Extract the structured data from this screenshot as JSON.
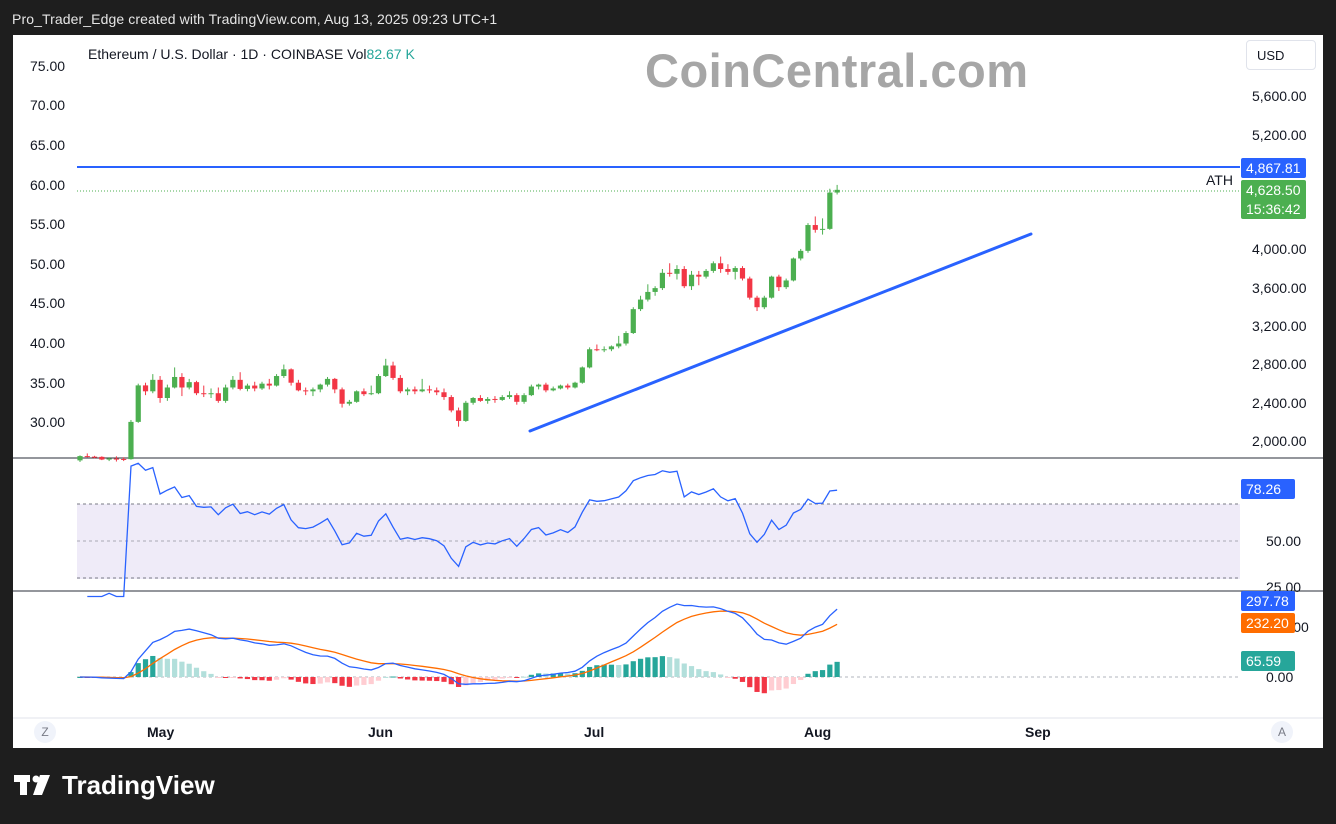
{
  "header": {
    "caption": "Pro_Trader_Edge created with TradingView.com, Aug 13, 2025 09:23 UTC+1"
  },
  "symbol": {
    "name": "Ethereum / U.S. Dollar · 1D · COINBASE",
    "vol_label": "Vol",
    "vol_value": "82.67 K"
  },
  "watermark": "CoinCentral.com",
  "currency": "USD",
  "corner_buttons": {
    "left": "Z",
    "right": "A"
  },
  "left_axis": {
    "ticks": [
      "75.00",
      "70.00",
      "65.00",
      "60.00",
      "55.00",
      "50.00",
      "45.00",
      "40.00",
      "35.00",
      "30.00"
    ]
  },
  "right_axis": {
    "ticks": [
      "5,600.00",
      "5,200.00",
      "4,000.00",
      "3,600.00",
      "3,200.00",
      "2,800.00",
      "2,400.00",
      "2,000.00"
    ]
  },
  "ath": {
    "label": "ATH",
    "price_tag": "4,867.81",
    "color": "#2962ff"
  },
  "last_price": {
    "price": "4,628.50",
    "countdown": "15:36:42",
    "color": "#4caf50"
  },
  "rsi": {
    "value_tag": "78.26",
    "levels": [
      "50.00",
      "25.00"
    ],
    "line_color": "#2962ff",
    "band_color": "#7e57c2"
  },
  "macd": {
    "macd_tag": "297.78",
    "signal_tag": "232.20",
    "hist_tag": "65.59",
    "zero_label": "0.00",
    "hidden_label": "200.00",
    "macd_color": "#2962ff",
    "signal_color": "#ff6d00",
    "hist_color": "#26a69a"
  },
  "time_axis": {
    "labels": [
      "May",
      "Jun",
      "Jul",
      "Aug",
      "Sep"
    ]
  },
  "footer": {
    "brand": "TradingView"
  },
  "colors": {
    "up": "#4caf50",
    "down": "#f23645",
    "trendline": "#2962ff"
  },
  "chart_data": {
    "type": "candlestick",
    "title": "Ethereum / U.S. Dollar · 1D · COINBASE",
    "ylabel": "USD",
    "trendline": {
      "from": [
        "2025-06-22",
        2150
      ],
      "to": [
        "2025-08-22",
        4300
      ]
    },
    "ath_level": 4867.81,
    "candles": [
      [
        "2025-05-01",
        1797,
        1850,
        1780,
        1842
      ],
      [
        "2025-05-02",
        1842,
        1870,
        1830,
        1836
      ],
      [
        "2025-05-03",
        1836,
        1845,
        1820,
        1834
      ],
      [
        "2025-05-04",
        1834,
        1840,
        1800,
        1806
      ],
      [
        "2025-05-05",
        1806,
        1830,
        1790,
        1816
      ],
      [
        "2025-05-06",
        1816,
        1840,
        1785,
        1812
      ],
      [
        "2025-05-07",
        1812,
        1830,
        1790,
        1810
      ],
      [
        "2025-05-08",
        1810,
        2220,
        1805,
        2200
      ],
      [
        "2025-05-09",
        2200,
        2600,
        2190,
        2582
      ],
      [
        "2025-05-10",
        2582,
        2610,
        2480,
        2520
      ],
      [
        "2025-05-11",
        2520,
        2700,
        2500,
        2640
      ],
      [
        "2025-05-12",
        2640,
        2680,
        2400,
        2450
      ],
      [
        "2025-05-13",
        2450,
        2590,
        2420,
        2560
      ],
      [
        "2025-05-14",
        2560,
        2770,
        2550,
        2670
      ],
      [
        "2025-05-15",
        2670,
        2710,
        2470,
        2560
      ],
      [
        "2025-05-16",
        2560,
        2650,
        2540,
        2616
      ],
      [
        "2025-05-17",
        2616,
        2630,
        2480,
        2500
      ],
      [
        "2025-05-18",
        2500,
        2580,
        2460,
        2490
      ],
      [
        "2025-05-19",
        2490,
        2550,
        2450,
        2500
      ],
      [
        "2025-05-20",
        2500,
        2560,
        2400,
        2420
      ],
      [
        "2025-05-21",
        2420,
        2590,
        2400,
        2560
      ],
      [
        "2025-05-22",
        2560,
        2680,
        2540,
        2640
      ],
      [
        "2025-05-23",
        2640,
        2720,
        2530,
        2545
      ],
      [
        "2025-05-24",
        2545,
        2600,
        2520,
        2580
      ],
      [
        "2025-05-25",
        2580,
        2620,
        2520,
        2550
      ],
      [
        "2025-05-26",
        2550,
        2620,
        2535,
        2600
      ],
      [
        "2025-05-27",
        2600,
        2650,
        2540,
        2580
      ],
      [
        "2025-05-28",
        2580,
        2700,
        2570,
        2680
      ],
      [
        "2025-05-29",
        2680,
        2800,
        2660,
        2750
      ],
      [
        "2025-05-30",
        2750,
        2760,
        2580,
        2610
      ],
      [
        "2025-05-31",
        2610,
        2640,
        2520,
        2530
      ],
      [
        "2025-06-01",
        2530,
        2560,
        2480,
        2520
      ],
      [
        "2025-06-02",
        2520,
        2560,
        2470,
        2540
      ],
      [
        "2025-06-03",
        2540,
        2600,
        2510,
        2590
      ],
      [
        "2025-06-04",
        2590,
        2670,
        2570,
        2650
      ],
      [
        "2025-06-05",
        2650,
        2660,
        2500,
        2540
      ],
      [
        "2025-06-06",
        2540,
        2560,
        2350,
        2390
      ],
      [
        "2025-06-07",
        2390,
        2430,
        2370,
        2410
      ],
      [
        "2025-06-08",
        2410,
        2530,
        2400,
        2520
      ],
      [
        "2025-06-09",
        2520,
        2550,
        2470,
        2490
      ],
      [
        "2025-06-10",
        2490,
        2580,
        2480,
        2500
      ],
      [
        "2025-06-11",
        2500,
        2700,
        2490,
        2680
      ],
      [
        "2025-06-12",
        2680,
        2860,
        2670,
        2790
      ],
      [
        "2025-06-13",
        2790,
        2830,
        2640,
        2660
      ],
      [
        "2025-06-14",
        2660,
        2690,
        2500,
        2520
      ],
      [
        "2025-06-15",
        2520,
        2560,
        2480,
        2540
      ],
      [
        "2025-06-16",
        2540,
        2570,
        2490,
        2520
      ],
      [
        "2025-06-17",
        2520,
        2650,
        2510,
        2540
      ],
      [
        "2025-06-18",
        2540,
        2580,
        2500,
        2530
      ],
      [
        "2025-06-19",
        2530,
        2560,
        2480,
        2510
      ],
      [
        "2025-06-20",
        2510,
        2550,
        2430,
        2460
      ],
      [
        "2025-06-21",
        2460,
        2480,
        2300,
        2320
      ],
      [
        "2025-06-22",
        2320,
        2350,
        2150,
        2210
      ],
      [
        "2025-06-23",
        2210,
        2420,
        2200,
        2400
      ],
      [
        "2025-06-24",
        2400,
        2460,
        2380,
        2450
      ],
      [
        "2025-06-25",
        2450,
        2480,
        2410,
        2420
      ],
      [
        "2025-06-26",
        2420,
        2460,
        2390,
        2440
      ],
      [
        "2025-06-27",
        2440,
        2470,
        2400,
        2430
      ],
      [
        "2025-06-28",
        2430,
        2480,
        2420,
        2460
      ],
      [
        "2025-06-29",
        2460,
        2520,
        2440,
        2480
      ],
      [
        "2025-06-30",
        2480,
        2500,
        2380,
        2410
      ],
      [
        "2025-07-01",
        2410,
        2500,
        2390,
        2480
      ],
      [
        "2025-07-02",
        2480,
        2590,
        2470,
        2570
      ],
      [
        "2025-07-03",
        2570,
        2600,
        2540,
        2590
      ],
      [
        "2025-07-04",
        2590,
        2610,
        2510,
        2530
      ],
      [
        "2025-07-05",
        2530,
        2570,
        2520,
        2550
      ],
      [
        "2025-07-06",
        2550,
        2590,
        2540,
        2580
      ],
      [
        "2025-07-07",
        2580,
        2600,
        2540,
        2560
      ],
      [
        "2025-07-08",
        2560,
        2620,
        2550,
        2610
      ],
      [
        "2025-07-09",
        2610,
        2780,
        2600,
        2770
      ],
      [
        "2025-07-10",
        2770,
        2980,
        2760,
        2960
      ],
      [
        "2025-07-11",
        2960,
        3010,
        2940,
        2950
      ],
      [
        "2025-07-12",
        2950,
        2990,
        2930,
        2960
      ],
      [
        "2025-07-13",
        2960,
        3000,
        2940,
        2990
      ],
      [
        "2025-07-14",
        2990,
        3100,
        2970,
        3020
      ],
      [
        "2025-07-15",
        3020,
        3150,
        3000,
        3130
      ],
      [
        "2025-07-16",
        3130,
        3400,
        3120,
        3380
      ],
      [
        "2025-07-17",
        3380,
        3520,
        3360,
        3480
      ],
      [
        "2025-07-18",
        3480,
        3640,
        3460,
        3560
      ],
      [
        "2025-07-19",
        3560,
        3620,
        3520,
        3600
      ],
      [
        "2025-07-20",
        3600,
        3800,
        3580,
        3760
      ],
      [
        "2025-07-21",
        3760,
        3860,
        3720,
        3750
      ],
      [
        "2025-07-22",
        3750,
        3840,
        3690,
        3800
      ],
      [
        "2025-07-23",
        3800,
        3830,
        3600,
        3620
      ],
      [
        "2025-07-24",
        3620,
        3780,
        3580,
        3740
      ],
      [
        "2025-07-25",
        3740,
        3780,
        3630,
        3720
      ],
      [
        "2025-07-26",
        3720,
        3800,
        3700,
        3780
      ],
      [
        "2025-07-27",
        3780,
        3880,
        3760,
        3860
      ],
      [
        "2025-07-28",
        3860,
        3930,
        3760,
        3800
      ],
      [
        "2025-07-29",
        3800,
        3850,
        3740,
        3770
      ],
      [
        "2025-07-30",
        3770,
        3830,
        3690,
        3810
      ],
      [
        "2025-07-31",
        3810,
        3830,
        3680,
        3700
      ],
      [
        "2025-08-01",
        3700,
        3720,
        3480,
        3500
      ],
      [
        "2025-08-02",
        3500,
        3520,
        3360,
        3400
      ],
      [
        "2025-08-03",
        3400,
        3520,
        3380,
        3500
      ],
      [
        "2025-08-04",
        3500,
        3730,
        3490,
        3720
      ],
      [
        "2025-08-05",
        3720,
        3740,
        3570,
        3610
      ],
      [
        "2025-08-06",
        3610,
        3700,
        3590,
        3680
      ],
      [
        "2025-08-07",
        3680,
        3920,
        3670,
        3910
      ],
      [
        "2025-08-08",
        3910,
        4010,
        3890,
        3990
      ],
      [
        "2025-08-09",
        3990,
        4280,
        3970,
        4260
      ],
      [
        "2025-08-10",
        4260,
        4350,
        4180,
        4210
      ],
      [
        "2025-08-11",
        4210,
        4330,
        4160,
        4220
      ],
      [
        "2025-08-12",
        4220,
        4640,
        4210,
        4600
      ],
      [
        "2025-08-13",
        4600,
        4680,
        4580,
        4628.5
      ]
    ]
  }
}
